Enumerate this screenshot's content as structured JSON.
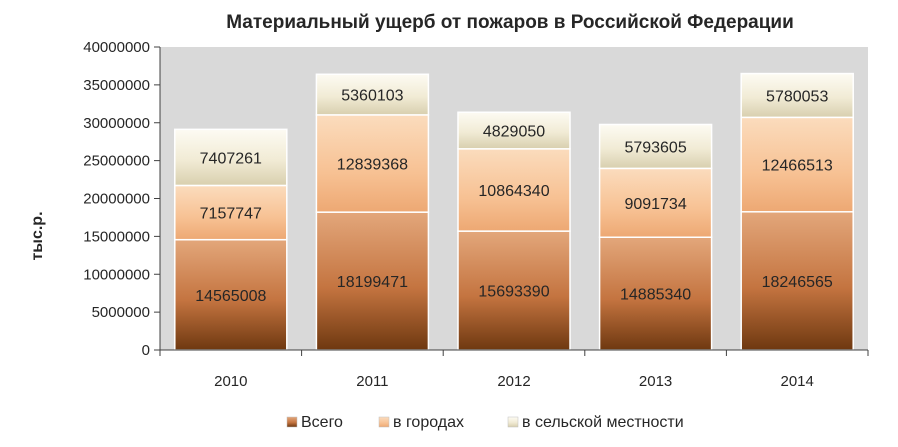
{
  "chart_data": {
    "type": "bar",
    "stacked": true,
    "title": "Материальный ущерб от пожаров в Российской Федерации",
    "xlabel": "",
    "ylabel": "тыс.р.",
    "categories": [
      "2010",
      "2011",
      "2012",
      "2013",
      "2014"
    ],
    "ylim": [
      0,
      40000000
    ],
    "yticks": [
      "0",
      "5000000",
      "10000000",
      "15000000",
      "20000000",
      "25000000",
      "30000000",
      "35000000",
      "40000000"
    ],
    "grid": false,
    "legend_position": "bottom",
    "series": [
      {
        "name": "Всего",
        "values": [
          14565008,
          18199471,
          15693390,
          14885340,
          18246565
        ],
        "labels": [
          "14565008",
          "18199471",
          "15693390",
          "14885340",
          "18246565"
        ],
        "color": "#c87a45"
      },
      {
        "name": "в городах",
        "values": [
          7157747,
          12839368,
          10864340,
          9091734,
          12466513
        ],
        "labels": [
          "7157747",
          "12839368",
          "10864340",
          "9091734",
          "12466513"
        ],
        "color": "#f7c496"
      },
      {
        "name": "в сельской местности",
        "values": [
          7407261,
          5360103,
          4829050,
          5793605,
          5780053
        ],
        "labels": [
          "7407261",
          "5360103",
          "4829050",
          "5793605",
          "5780053"
        ],
        "color": "#f2ecd8"
      }
    ],
    "colors": {
      "plot_background": "#d9d9d9",
      "axis": "#404040",
      "text": "#262626"
    }
  }
}
